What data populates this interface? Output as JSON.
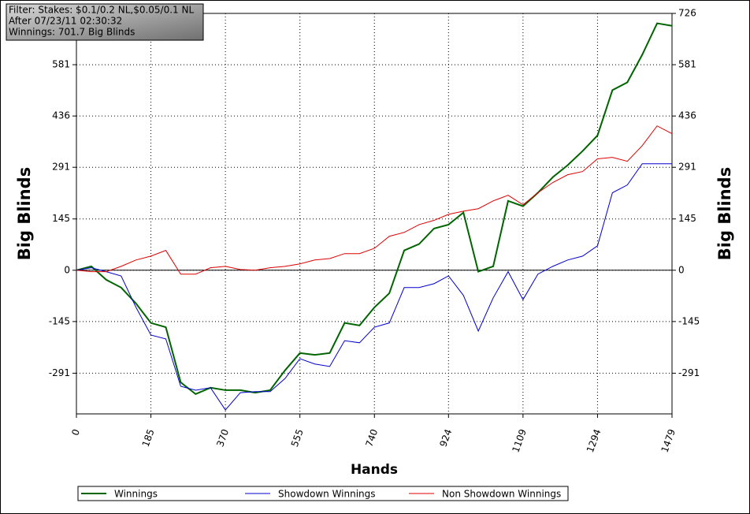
{
  "chart_data": {
    "type": "line",
    "annotations": [
      "Filter: Stakes: $0.1/0.2 NL,$0.05/0.1 NL",
      "After 07/23/11 02:30:32",
      "Winnings: 701.7 Big Blinds"
    ],
    "xlabel": "Hands",
    "ylabel": "Big Blinds",
    "y2label": "Big Blinds",
    "x": [
      0,
      37,
      74,
      111,
      148,
      185,
      222,
      259,
      296,
      333,
      370,
      407,
      444,
      481,
      518,
      555,
      592,
      629,
      666,
      703,
      740,
      777,
      814,
      851,
      888,
      924,
      961,
      998,
      1035,
      1072,
      1109,
      1146,
      1183,
      1220,
      1257,
      1294,
      1331,
      1368,
      1405,
      1442,
      1479
    ],
    "series": [
      {
        "name": "Winnings",
        "color": "#006400",
        "values": [
          0,
          11,
          -27,
          -49,
          -94,
          -149,
          -161,
          -317,
          -350,
          -332,
          -339,
          -339,
          -346,
          -339,
          -283,
          -234,
          -239,
          -234,
          -149,
          -156,
          -105,
          -65,
          56,
          74,
          118,
          129,
          163,
          -4,
          11,
          196,
          181,
          219,
          263,
          297,
          337,
          381,
          509,
          531,
          609,
          698,
          691
        ]
      },
      {
        "name": "Showdown Winnings",
        "color": "#0000cc",
        "values": [
          0,
          7,
          -4,
          -16,
          -105,
          -183,
          -194,
          -328,
          -339,
          -332,
          -395,
          -346,
          -343,
          -343,
          -306,
          -250,
          -265,
          -272,
          -199,
          -205,
          -161,
          -149,
          -49,
          -49,
          -38,
          -16,
          -71,
          -172,
          -78,
          -4,
          -83,
          -11,
          11,
          29,
          40,
          69,
          219,
          241,
          301,
          301,
          301
        ]
      },
      {
        "name": "Non Showdown Winnings",
        "color": "#dd0000",
        "values": [
          0,
          -4,
          -4,
          11,
          29,
          40,
          56,
          -11,
          -11,
          7,
          11,
          2,
          0,
          7,
          11,
          18,
          29,
          33,
          47,
          47,
          62,
          96,
          107,
          129,
          141,
          158,
          167,
          174,
          196,
          212,
          185,
          219,
          248,
          270,
          279,
          315,
          319,
          308,
          352,
          408,
          386
        ]
      }
    ],
    "xlim": [
      0,
      1479
    ],
    "xticks": [
      0,
      185,
      370,
      555,
      740,
      924,
      1109,
      1294,
      1479
    ],
    "ylim": [
      -406,
      726
    ],
    "yticks": [
      -291,
      -145,
      0,
      145,
      291,
      436,
      581,
      726
    ],
    "y2lim": [
      -406,
      726
    ],
    "y2ticks": [
      -291,
      -145,
      0,
      145,
      291,
      436,
      581,
      726
    ],
    "grid": true
  }
}
